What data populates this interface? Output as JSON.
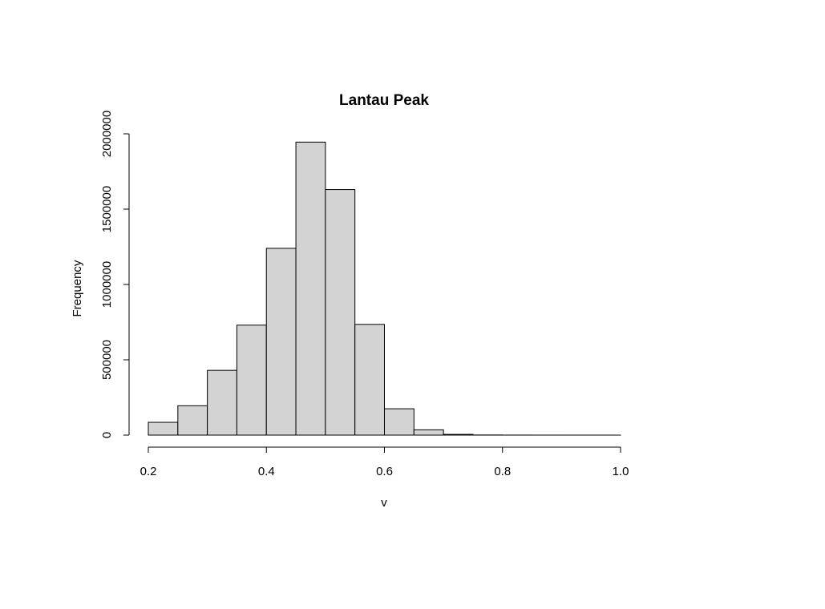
{
  "chart_data": {
    "type": "bar",
    "title": "Lantau Peak",
    "xlabel": "v",
    "ylabel": "Frequency",
    "bin_edges": [
      0.2,
      0.25,
      0.3,
      0.35,
      0.4,
      0.45,
      0.5,
      0.55,
      0.6,
      0.65,
      0.7,
      0.75,
      0.8,
      0.85,
      0.9,
      0.95,
      1.0
    ],
    "values": [
      85000,
      195000,
      430000,
      730000,
      1240000,
      1945000,
      1630000,
      735000,
      175000,
      35000,
      5000,
      1000,
      300,
      100,
      50,
      20
    ],
    "xlim": [
      0.2,
      1.0
    ],
    "ylim": [
      0,
      2000000
    ],
    "x_ticks": [
      0.2,
      0.4,
      0.6,
      0.8,
      1.0
    ],
    "x_tick_labels": [
      "0.2",
      "0.4",
      "0.6",
      "0.8",
      "1.0"
    ],
    "y_ticks": [
      0,
      500000,
      1000000,
      1500000,
      2000000
    ],
    "y_tick_labels": [
      "0",
      "500000",
      "1000000",
      "1500000",
      "2000000"
    ],
    "bar_color": "#d3d3d3",
    "edge_color": "#000000",
    "grid": false,
    "legend": "none"
  }
}
